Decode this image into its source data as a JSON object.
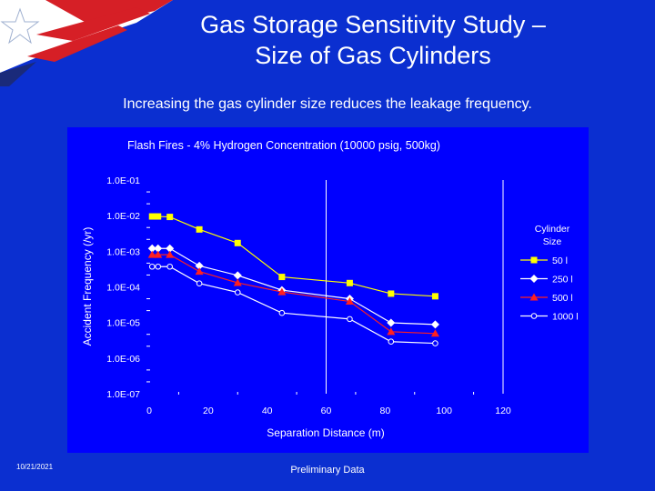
{
  "slide": {
    "title_line1": "Gas Storage Sensitivity Study –",
    "title_line2": "Size of Gas Cylinders",
    "subtitle": "Increasing the gas cylinder size reduces the leakage frequency.",
    "date": "10/21/2021",
    "note": "Preliminary Data"
  },
  "colors": {
    "background": "#0b2fd0",
    "plot_text": "#ffffff",
    "series_50": "#ffff00",
    "series_250": "#ffffff",
    "series_500": "#ff2020",
    "series_1000": "#ffffff",
    "flag_red": "#d61f26"
  },
  "chart_data": {
    "type": "line",
    "title": "Flash Fires - 4% Hydrogen Concentration (10000 psig, 500kg)",
    "xlabel": "Separation Distance (m)",
    "ylabel": "Accident Frequency (/yr)",
    "xlim": [
      0,
      120
    ],
    "ylim": [
      1e-07,
      0.1
    ],
    "yscale": "log",
    "x_ticks": [
      "0",
      "20",
      "40",
      "60",
      "80",
      "100",
      "120"
    ],
    "y_ticks": [
      "1.0E-01",
      "1.0E-02",
      "1.0E-03",
      "1.0E-04",
      "1.0E-05",
      "1.0E-06",
      "1.0E-07"
    ],
    "vertical_grid": [
      60,
      120
    ],
    "legend_title": "Cylinder Size",
    "legend_position": "right",
    "series": [
      {
        "name": "50 l",
        "marker": "square",
        "x": [
          1,
          3,
          7,
          17,
          30,
          45,
          68,
          82,
          97
        ],
        "y": [
          0.0095,
          0.0095,
          0.0092,
          0.0041,
          0.0017,
          0.00019,
          0.000128,
          6.45e-05,
          5.45e-05
        ]
      },
      {
        "name": "250 l",
        "marker": "diamond",
        "x": [
          1,
          3,
          7,
          17,
          30,
          45,
          68,
          82,
          97
        ],
        "y": [
          0.0012,
          0.0012,
          0.0012,
          0.00039,
          0.00021,
          8.1e-05,
          4.65e-05,
          9.8e-06,
          8.8e-06
        ]
      },
      {
        "name": "500 l",
        "marker": "triangle",
        "x": [
          1,
          3,
          7,
          17,
          30,
          45,
          68,
          82,
          97
        ],
        "y": [
          0.0008,
          0.0008,
          0.0008,
          0.00027,
          0.00013,
          7.2e-05,
          3.9e-05,
          5.5e-06,
          4.9e-06
        ]
      },
      {
        "name": "1000 l",
        "marker": "circle",
        "x": [
          1,
          3,
          7,
          17,
          30,
          45,
          68,
          82,
          97
        ],
        "y": [
          0.00037,
          0.00037,
          0.00037,
          0.000125,
          7e-05,
          1.85e-05,
          1.25e-05,
          2.9e-06,
          2.6e-06
        ]
      }
    ]
  }
}
